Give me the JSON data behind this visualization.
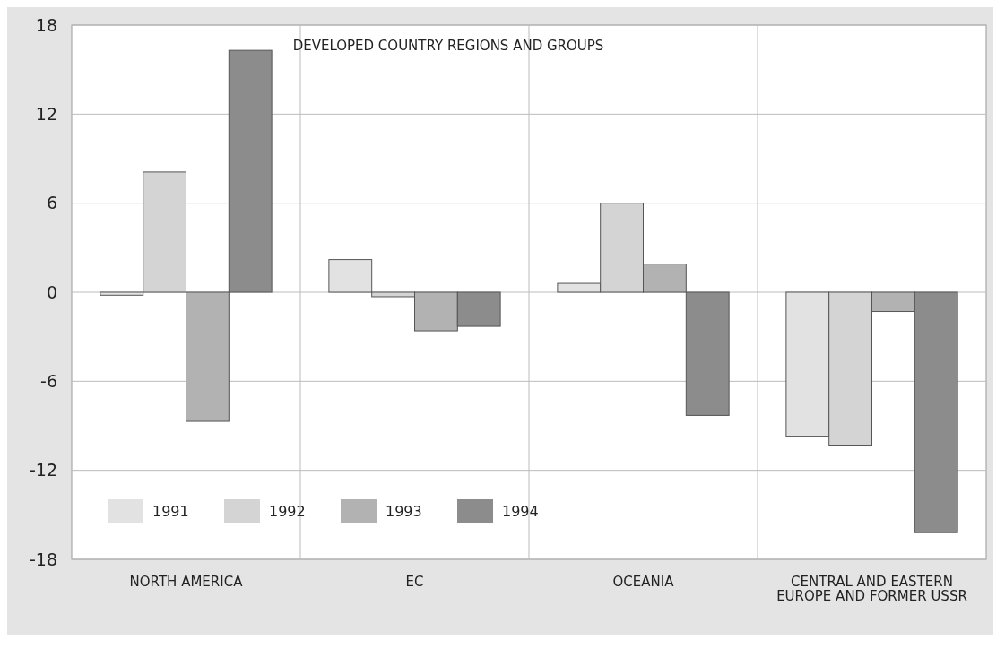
{
  "chart_data": {
    "type": "bar",
    "title": "DEVELOPED COUNTRY REGIONS AND GROUPS",
    "categories": [
      "NORTH AMERICA",
      "EC",
      "OCEANIA",
      "CENTRAL AND EASTERN EUROPE AND FORMER USSR"
    ],
    "series": [
      {
        "name": "1991",
        "color": "#e2e2e2",
        "values": [
          -0.2,
          2.2,
          0.6,
          -9.7
        ]
      },
      {
        "name": "1992",
        "color": "#d4d4d4",
        "values": [
          8.1,
          -0.3,
          6.0,
          -10.3
        ]
      },
      {
        "name": "1993",
        "color": "#b2b2b2",
        "values": [
          -8.7,
          -2.6,
          1.9,
          -1.3
        ]
      },
      {
        "name": "1994",
        "color": "#8c8c8c",
        "values": [
          16.3,
          -2.3,
          -8.3,
          -16.2
        ]
      }
    ],
    "ylim": [
      -18,
      18
    ],
    "yticks": [
      -18,
      -12,
      -6,
      0,
      6,
      12,
      18
    ],
    "grid": true,
    "legend": "bottom left"
  }
}
